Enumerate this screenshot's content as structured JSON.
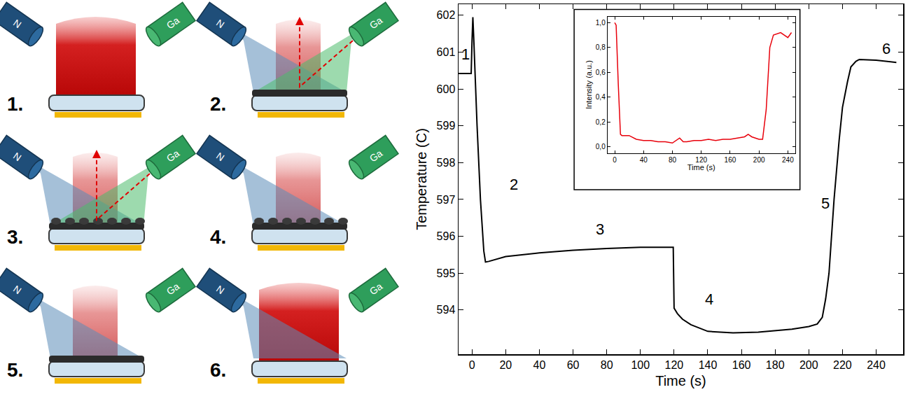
{
  "diagram": {
    "panels": [
      "1.",
      "2.",
      "3.",
      "4.",
      "5.",
      "6."
    ],
    "sources": [
      "N",
      "Ga"
    ]
  },
  "chart_data": [
    {
      "type": "line",
      "x_label": "Time (s)",
      "y_label": "Temperature (C)",
      "color": "#000000",
      "x": [
        -8,
        -4,
        -0.5,
        0,
        0.5,
        1,
        3,
        5,
        7,
        8,
        10,
        20,
        40,
        60,
        80,
        100,
        119.5,
        120,
        122,
        125,
        130,
        140,
        155,
        170,
        190,
        200,
        205,
        208,
        210,
        212,
        215,
        218,
        220,
        223,
        225,
        228,
        230,
        240,
        252
      ],
      "values": [
        600.42,
        600.42,
        600.42,
        601.3,
        601.95,
        601.4,
        599.0,
        597.0,
        595.6,
        595.3,
        595.32,
        595.45,
        595.55,
        595.62,
        595.67,
        595.7,
        595.7,
        594.05,
        593.9,
        593.75,
        593.6,
        593.42,
        593.38,
        593.4,
        593.48,
        593.55,
        593.62,
        593.8,
        594.3,
        595.0,
        597.0,
        598.6,
        599.5,
        600.2,
        600.6,
        600.75,
        600.8,
        600.78,
        600.72
      ],
      "xlim": [
        -8,
        256
      ],
      "ylim": [
        592.8,
        602.3
      ],
      "xticks": [
        0,
        20,
        40,
        60,
        80,
        100,
        120,
        140,
        160,
        180,
        200,
        220,
        240
      ],
      "yticks": [
        594,
        595,
        596,
        597,
        598,
        599,
        600,
        601,
        602
      ],
      "annotations": [
        {
          "text": "1",
          "x": -4,
          "y": 600.95
        },
        {
          "text": "2",
          "x": 25,
          "y": 597.4
        },
        {
          "text": "3",
          "x": 76,
          "y": 596.2
        },
        {
          "text": "4",
          "x": 141,
          "y": 594.3
        },
        {
          "text": "5",
          "x": 210,
          "y": 596.9
        },
        {
          "text": "6",
          "x": 246,
          "y": 601.1
        }
      ]
    },
    {
      "type": "line",
      "x_label": "Time (s)",
      "y_label": "Intensity (a.u.)",
      "color": "#e8000b",
      "x": [
        0,
        2,
        5,
        8,
        10,
        20,
        30,
        40,
        50,
        60,
        70,
        80,
        90,
        95,
        100,
        110,
        120,
        130,
        140,
        150,
        160,
        170,
        180,
        185,
        190,
        195,
        200,
        205,
        210,
        215,
        220,
        230,
        240,
        245
      ],
      "values": [
        1.0,
        0.98,
        0.5,
        0.1,
        0.09,
        0.09,
        0.06,
        0.05,
        0.05,
        0.04,
        0.04,
        0.03,
        0.07,
        0.04,
        0.04,
        0.05,
        0.05,
        0.06,
        0.05,
        0.06,
        0.06,
        0.07,
        0.08,
        0.1,
        0.08,
        0.07,
        0.06,
        0.06,
        0.3,
        0.8,
        0.9,
        0.92,
        0.88,
        0.92
      ],
      "xlim": [
        -10,
        250
      ],
      "ylim": [
        -0.05,
        1.05
      ],
      "xticks": [
        0,
        40,
        80,
        120,
        160,
        200,
        240
      ],
      "yticks": [
        {
          "value": 0,
          "label": "0,0"
        },
        {
          "value": 0.2,
          "label": "0,2"
        },
        {
          "value": 0.4,
          "label": "0,4"
        },
        {
          "value": 0.6,
          "label": "0,6"
        },
        {
          "value": 0.8,
          "label": "0,8"
        },
        {
          "value": 1.0,
          "label": "1,0"
        }
      ]
    }
  ]
}
